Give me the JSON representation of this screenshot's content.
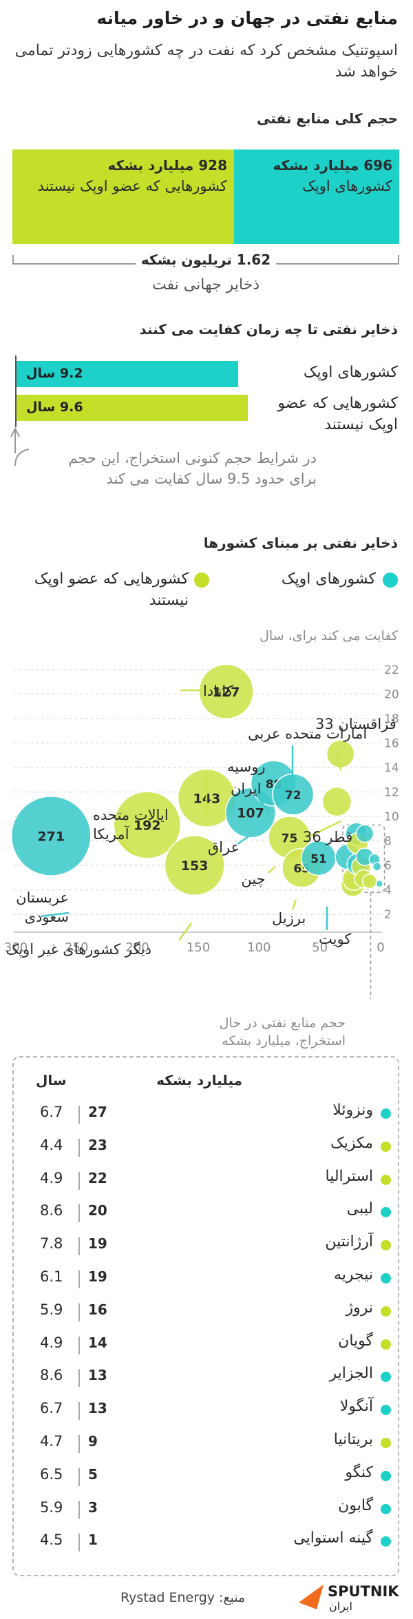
{
  "title": "منابع نفتی در جهان و در خاور میانه",
  "subtitle": "اسپوتنیک مشخص کرد که نفت در چه کشورهایی زودتر تمامی خواهد شد",
  "colors": {
    "opec": "#1dd1c8",
    "nonopec": "#c4de29",
    "opec_bubble": "#3ec9c9",
    "nonopec_bubble": "#cde24a",
    "grey": "#8a8a8a"
  },
  "section1": {
    "heading": "حجم کلی منابع نفتی",
    "opec": {
      "value_text": "696 میلیارد بشکه",
      "label": "کشورهای اوپک",
      "value": 696
    },
    "nonopec": {
      "value_text": "928 میلیارد بشکه",
      "label": "کشورهایی که عضو اوپک نیستند",
      "value": 928
    },
    "total_text": "1.62 تریلیون بشکه",
    "total_label": "ذخایر جهانی نفت"
  },
  "section2": {
    "heading": "ذخایر نفتی تا چه زمان کفایت می کنند",
    "opec": {
      "label": "کشورهای اوپک",
      "value_text": "9.2 سال",
      "years": 9.2
    },
    "nonopec": {
      "label": "کشورهایی که عضو اوپک نیستند",
      "value_text": "9.6 سال",
      "years": 9.6
    },
    "note": "در شرایط حجم کنونی استخراج، این حجم برای حدود 9.5 سال کفایت می کند"
  },
  "section3": {
    "heading": "ذخایر نفتی بر مبنای کشورها",
    "legend_opec": "کشورهای اوپک",
    "legend_nonopec": "کشورهایی که عضو اوپک نیستند",
    "ylabel": "کفایت می کند برای، سال",
    "xlabel": "حجم منابع نفتی در حال استخراج، میلیارد بشکه"
  },
  "chart_data": {
    "type": "scatter",
    "xlabel": "حجم منابع نفتی در حال استخراج، میلیارد بشکه",
    "ylabel": "کفایت می کند برای، سال",
    "xlim": [
      0,
      300
    ],
    "ylim": [
      1,
      23
    ],
    "x_ticks": [
      300,
      250,
      200,
      150,
      100,
      50,
      0
    ],
    "y_ticks": [
      2,
      4,
      6,
      8,
      10,
      12,
      14,
      16,
      18,
      20,
      22
    ],
    "points": [
      {
        "name": "کانادا",
        "x": 127,
        "y": 20.2,
        "group": "nonopec",
        "label": "127"
      },
      {
        "name": "قزاقستان 33",
        "x": 33,
        "y": 15.1,
        "group": "nonopec",
        "label": ""
      },
      {
        "name": "ایالات متحده آمریکا",
        "x": 192,
        "y": 9.3,
        "group": "nonopec",
        "label": "192"
      },
      {
        "name": "روسیه",
        "x": 143,
        "y": 11.5,
        "group": "nonopec",
        "label": "143"
      },
      {
        "name": "امارات متحده عربی",
        "x": 72,
        "y": 11.8,
        "group": "opec",
        "label": "72"
      },
      {
        "name": "ایران",
        "x": 88,
        "y": 12.7,
        "group": "opec",
        "label": "88"
      },
      {
        "name": "عراق",
        "x": 107,
        "y": 10.3,
        "group": "opec",
        "label": "107"
      },
      {
        "name": "قطر 36",
        "x": 36,
        "y": 11.2,
        "group": "nonopec",
        "label": ""
      },
      {
        "name": "چین",
        "x": 75,
        "y": 8.3,
        "group": "nonopec",
        "label": "75"
      },
      {
        "name": "برزیل",
        "x": 65,
        "y": 5.8,
        "group": "nonopec",
        "label": "65"
      },
      {
        "name": "کویت",
        "x": 51,
        "y": 6.6,
        "group": "opec",
        "label": "51"
      },
      {
        "name": "عربستان سعودی",
        "x": 271,
        "y": 8.4,
        "group": "opec",
        "label": "271"
      },
      {
        "name": "دیگر کشورهای غیر اوپک",
        "x": 153,
        "y": 6.0,
        "group": "nonopec",
        "label": "153"
      },
      {
        "name": "ونزوئلا",
        "x": 27,
        "y": 6.7,
        "group": "opec",
        "label": ""
      },
      {
        "name": "مکزیک",
        "x": 23,
        "y": 4.4,
        "group": "nonopec",
        "label": ""
      },
      {
        "name": "استرالیا",
        "x": 22,
        "y": 4.9,
        "group": "nonopec",
        "label": ""
      },
      {
        "name": "لیبی",
        "x": 20,
        "y": 8.6,
        "group": "opec",
        "label": ""
      },
      {
        "name": "آرژانتین",
        "x": 19,
        "y": 7.8,
        "group": "nonopec",
        "label": ""
      },
      {
        "name": "نیجریه",
        "x": 19,
        "y": 6.1,
        "group": "opec",
        "label": ""
      },
      {
        "name": "نروژ",
        "x": 16,
        "y": 5.9,
        "group": "nonopec",
        "label": ""
      },
      {
        "name": "گویان",
        "x": 14,
        "y": 4.9,
        "group": "nonopec",
        "label": ""
      },
      {
        "name": "الجزایر",
        "x": 13,
        "y": 8.6,
        "group": "opec",
        "label": ""
      },
      {
        "name": "آنگولا",
        "x": 13,
        "y": 6.7,
        "group": "opec",
        "label": ""
      },
      {
        "name": "بریتانیا",
        "x": 9,
        "y": 4.7,
        "group": "nonopec",
        "label": ""
      },
      {
        "name": "کنگو",
        "x": 5,
        "y": 6.5,
        "group": "opec",
        "label": ""
      },
      {
        "name": "گابون",
        "x": 3,
        "y": 5.9,
        "group": "opec",
        "label": ""
      },
      {
        "name": "گینه استوایی",
        "x": 1,
        "y": 4.5,
        "group": "opec",
        "label": ""
      }
    ]
  },
  "table": {
    "head_reserves": "میلیارد بشکه",
    "head_years": "سال",
    "rows": [
      {
        "name": "ونزوئلا",
        "reserves": "27",
        "years": "6.7",
        "group": "opec"
      },
      {
        "name": "مکزیک",
        "reserves": "23",
        "years": "4.4",
        "group": "nonopec"
      },
      {
        "name": "استرالیا",
        "reserves": "22",
        "years": "4.9",
        "group": "nonopec"
      },
      {
        "name": "لیبی",
        "reserves": "20",
        "years": "8.6",
        "group": "opec"
      },
      {
        "name": "آرژانتین",
        "reserves": "19",
        "years": "7.8",
        "group": "nonopec"
      },
      {
        "name": "نیجریه",
        "reserves": "19",
        "years": "6.1",
        "group": "opec"
      },
      {
        "name": "نروژ",
        "reserves": "16",
        "years": "5.9",
        "group": "nonopec"
      },
      {
        "name": "گویان",
        "reserves": "14",
        "years": "4.9",
        "group": "nonopec"
      },
      {
        "name": "الجزایر",
        "reserves": "13",
        "years": "8.6",
        "group": "opec"
      },
      {
        "name": "آنگولا",
        "reserves": "13",
        "years": "6.7",
        "group": "opec"
      },
      {
        "name": "بریتانیا",
        "reserves": "9",
        "years": "4.7",
        "group": "nonopec"
      },
      {
        "name": "کنگو",
        "reserves": "5",
        "years": "6.5",
        "group": "opec"
      },
      {
        "name": "گابون",
        "reserves": "3",
        "years": "5.9",
        "group": "opec"
      },
      {
        "name": "گینه استوایی",
        "reserves": "1",
        "years": "4.5",
        "group": "opec"
      }
    ]
  },
  "footer": {
    "source": "منبع: Rystad Energy",
    "brand": "SPUTNIK",
    "brand_sub": "ایران"
  }
}
